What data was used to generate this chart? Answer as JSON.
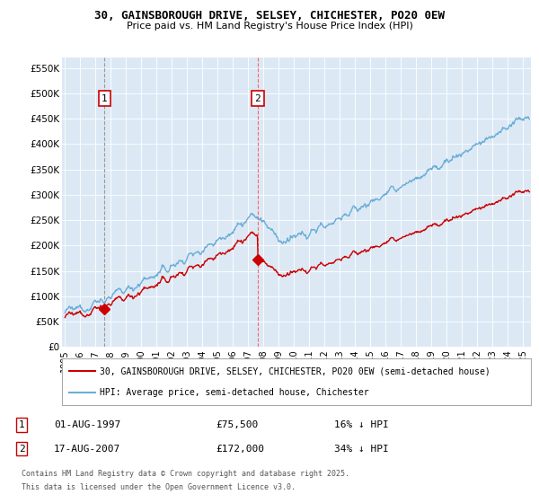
{
  "title_line1": "30, GAINSBOROUGH DRIVE, SELSEY, CHICHESTER, PO20 0EW",
  "title_line2": "Price paid vs. HM Land Registry's House Price Index (HPI)",
  "ylabel_ticks": [
    "£0",
    "£50K",
    "£100K",
    "£150K",
    "£200K",
    "£250K",
    "£300K",
    "£350K",
    "£400K",
    "£450K",
    "£500K",
    "£550K"
  ],
  "ytick_values": [
    0,
    50000,
    100000,
    150000,
    200000,
    250000,
    300000,
    350000,
    400000,
    450000,
    500000,
    550000
  ],
  "ylim": [
    0,
    570000
  ],
  "xlim_start": 1994.8,
  "xlim_end": 2025.5,
  "background_color": "#dce9f5",
  "hpi_line_color": "#6baed6",
  "price_line_color": "#cc0000",
  "purchase1_x": 1997.58,
  "purchase1_y": 75500,
  "purchase1_label": "1",
  "purchase1_date": "01-AUG-1997",
  "purchase1_price": "£75,500",
  "purchase1_hpi": "16% ↓ HPI",
  "purchase2_x": 2007.62,
  "purchase2_y": 172000,
  "purchase2_label": "2",
  "purchase2_date": "17-AUG-2007",
  "purchase2_price": "£172,000",
  "purchase2_hpi": "34% ↓ HPI",
  "legend_line1": "30, GAINSBOROUGH DRIVE, SELSEY, CHICHESTER, PO20 0EW (semi-detached house)",
  "legend_line2": "HPI: Average price, semi-detached house, Chichester",
  "footer_line1": "Contains HM Land Registry data © Crown copyright and database right 2025.",
  "footer_line2": "This data is licensed under the Open Government Licence v3.0.",
  "xtick_years": [
    1995,
    1996,
    1997,
    1998,
    1999,
    2000,
    2001,
    2002,
    2003,
    2004,
    2005,
    2006,
    2007,
    2008,
    2009,
    2010,
    2011,
    2012,
    2013,
    2014,
    2015,
    2016,
    2017,
    2018,
    2019,
    2020,
    2021,
    2022,
    2023,
    2024,
    2025
  ]
}
